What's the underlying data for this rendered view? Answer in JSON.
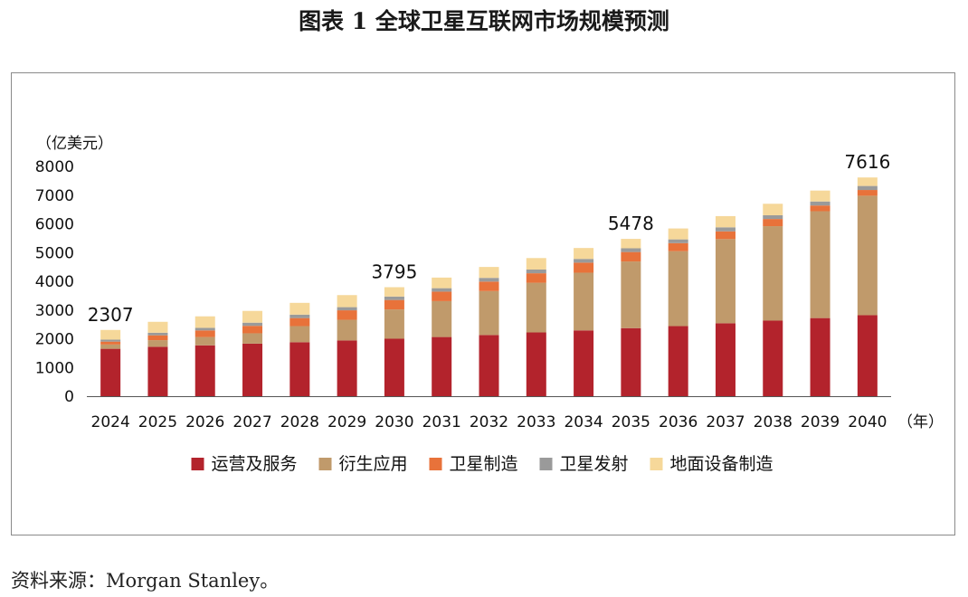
{
  "title": "图表 1  全球卫星互联网市场规模预测",
  "source": "资料来源：Morgan Stanley。",
  "chart_data": {
    "type": "bar",
    "stacked": true,
    "unit_label": "（亿美元）",
    "x_unit_label": "（年）",
    "categories": [
      "2024",
      "2025",
      "2026",
      "2027",
      "2028",
      "2029",
      "2030",
      "2031",
      "2032",
      "2033",
      "2034",
      "2035",
      "2036",
      "2037",
      "2038",
      "2039",
      "2040"
    ],
    "ylim": [
      0,
      8000
    ],
    "yticks": [
      "0",
      "1000",
      "2000",
      "3000",
      "4000",
      "5000",
      "6000",
      "7000",
      "8000"
    ],
    "legend_position": "bottom",
    "series": [
      {
        "name": "运营及服务",
        "color": "#b3232c",
        "values": [
          1650,
          1720,
          1770,
          1830,
          1880,
          1940,
          2000,
          2060,
          2130,
          2220,
          2290,
          2370,
          2440,
          2540,
          2630,
          2720,
          2820
        ]
      },
      {
        "name": "衍生应用",
        "color": "#c09a6b",
        "values": [
          150,
          230,
          290,
          360,
          560,
          720,
          1020,
          1250,
          1530,
          1730,
          2010,
          2320,
          2610,
          2930,
          3290,
          3720,
          4160
        ]
      },
      {
        "name": "卫星制造",
        "color": "#e8723a",
        "values": [
          100,
          170,
          230,
          260,
          280,
          330,
          330,
          330,
          330,
          330,
          350,
          330,
          280,
          270,
          250,
          200,
          200
        ]
      },
      {
        "name": "卫星发射",
        "color": "#9a9a9a",
        "values": [
          70,
          90,
          90,
          110,
          120,
          110,
          120,
          120,
          130,
          130,
          130,
          130,
          130,
          140,
          130,
          140,
          140
        ]
      },
      {
        "name": "地面设备制造",
        "color": "#f6d89a",
        "values": [
          337,
          380,
          400,
          410,
          410,
          420,
          325,
          370,
          380,
          400,
          380,
          328,
          380,
          390,
          400,
          380,
          296
        ]
      }
    ],
    "totals_labeled": [
      {
        "category": "2024",
        "value": 2307
      },
      {
        "category": "2030",
        "value": 3795
      },
      {
        "category": "2035",
        "value": 5478
      },
      {
        "category": "2040",
        "value": 7616
      }
    ]
  }
}
